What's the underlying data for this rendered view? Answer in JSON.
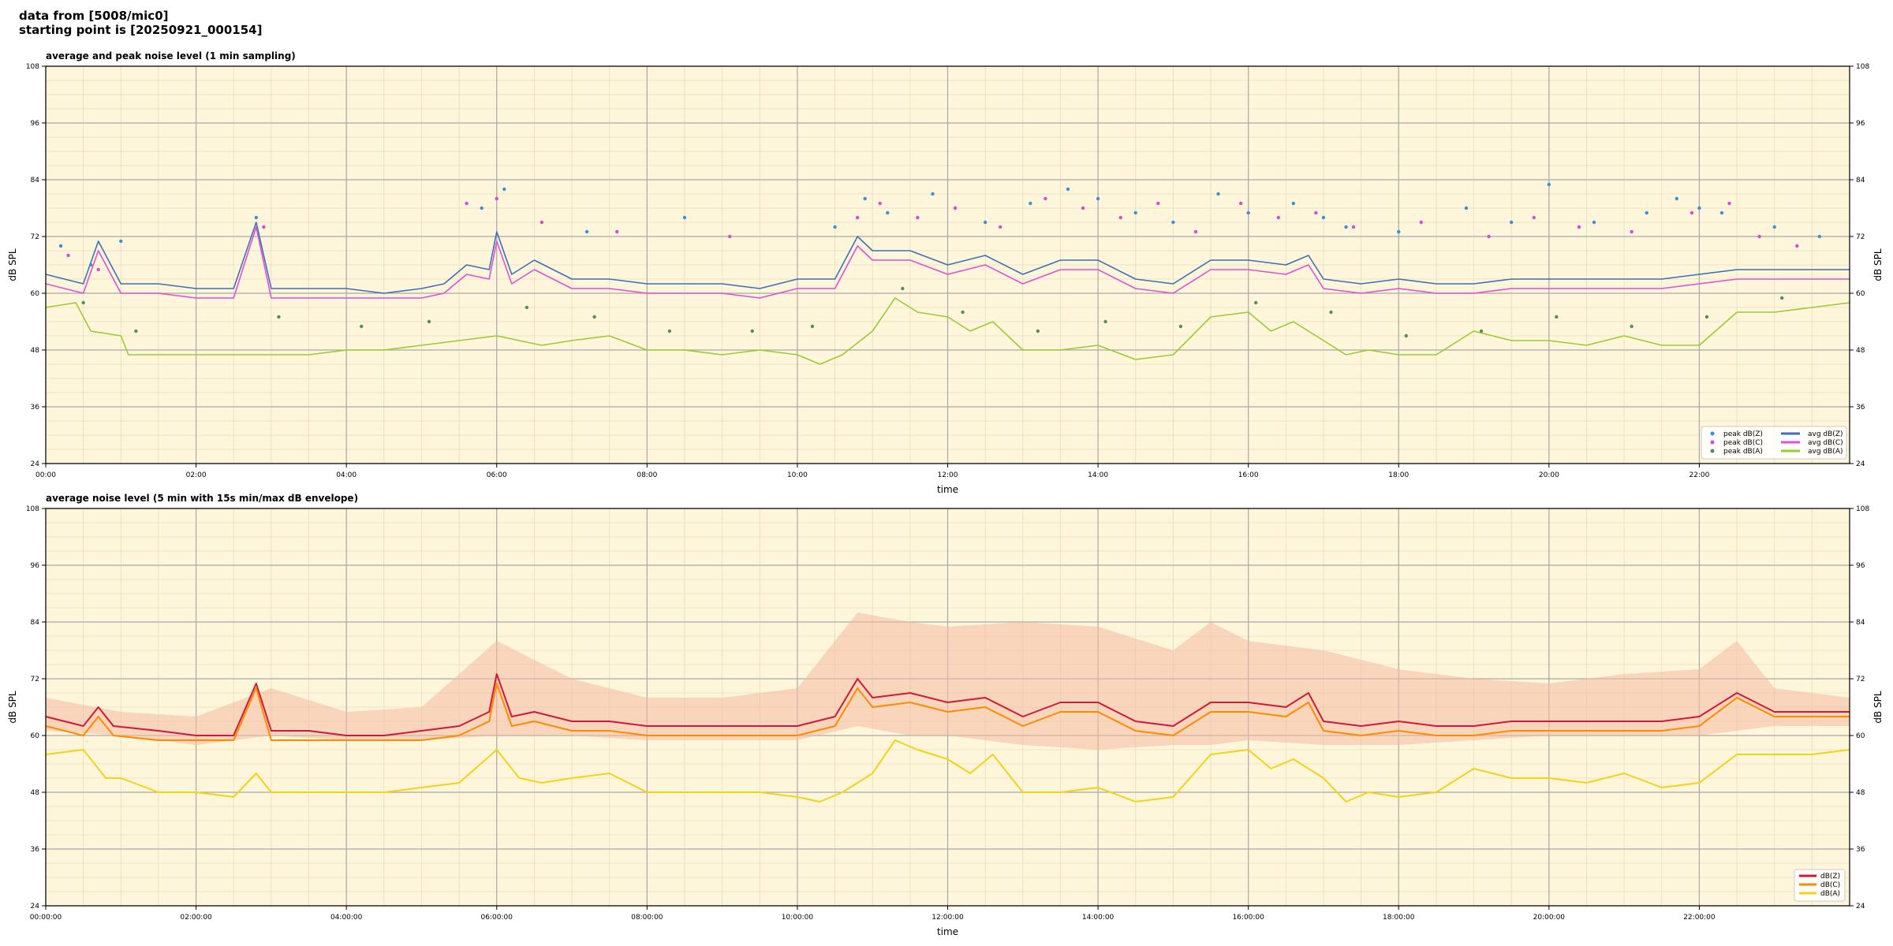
{
  "header": {
    "line1": "data from [5008/mic0]",
    "line2": "starting point is [20250921_000154]"
  },
  "chart_data": [
    {
      "type": "line",
      "title": "average and peak noise level (1 min sampling)",
      "xlabel": "time",
      "ylabel": "dB SPL",
      "xlim": [
        0,
        24
      ],
      "ylim": [
        24,
        108
      ],
      "yticks": [
        24,
        36,
        48,
        60,
        72,
        84,
        96,
        108
      ],
      "xticks": [
        0,
        2,
        4,
        6,
        8,
        10,
        12,
        14,
        16,
        18,
        20,
        22
      ],
      "xtick_labels": [
        "00:00",
        "02:00",
        "04:00",
        "06:00",
        "08:00",
        "10:00",
        "12:00",
        "14:00",
        "16:00",
        "18:00",
        "20:00",
        "22:00"
      ],
      "grid": true,
      "legend_position": "bottom-right",
      "colors": {
        "background": "#fdf6da",
        "avg_z": "#3f6fb5",
        "avg_c": "#e04fd4",
        "avg_a": "#99cc33"
      },
      "series": [
        {
          "name": "avg dB(Z)",
          "kind": "line",
          "color": "#3f6fb5",
          "x": [
            0,
            0.5,
            0.7,
            1,
            1.5,
            2,
            2.5,
            2.8,
            3,
            3.5,
            4,
            4.5,
            5,
            5.3,
            5.6,
            5.9,
            6,
            6.2,
            6.5,
            7,
            7.5,
            8,
            8.5,
            9,
            9.5,
            10,
            10.5,
            10.8,
            11,
            11.5,
            12,
            12.5,
            13,
            13.5,
            14,
            14.5,
            15,
            15.5,
            16,
            16.5,
            16.8,
            17,
            17.5,
            18,
            18.5,
            19,
            19.5,
            20,
            20.5,
            21,
            21.5,
            22,
            22.5,
            23,
            23.5,
            24
          ],
          "values": [
            64,
            62,
            71,
            62,
            62,
            61,
            61,
            75,
            61,
            61,
            61,
            60,
            61,
            62,
            66,
            65,
            73,
            64,
            67,
            63,
            63,
            62,
            62,
            62,
            61,
            63,
            63,
            72,
            69,
            69,
            66,
            68,
            64,
            67,
            67,
            63,
            62,
            67,
            67,
            66,
            68,
            63,
            62,
            63,
            62,
            62,
            63,
            63,
            63,
            63,
            63,
            64,
            65,
            65,
            65,
            65
          ]
        },
        {
          "name": "avg dB(C)",
          "kind": "line",
          "color": "#e04fd4",
          "x": [
            0,
            0.5,
            0.7,
            1,
            1.5,
            2,
            2.5,
            2.8,
            3,
            3.5,
            4,
            4.5,
            5,
            5.3,
            5.6,
            5.9,
            6,
            6.2,
            6.5,
            7,
            7.5,
            8,
            8.5,
            9,
            9.5,
            10,
            10.5,
            10.8,
            11,
            11.5,
            12,
            12.5,
            13,
            13.5,
            14,
            14.5,
            15,
            15.5,
            16,
            16.5,
            16.8,
            17,
            17.5,
            18,
            18.5,
            19,
            19.5,
            20,
            20.5,
            21,
            21.5,
            22,
            22.5,
            23,
            23.5,
            24
          ],
          "values": [
            62,
            60,
            69,
            60,
            60,
            59,
            59,
            74,
            59,
            59,
            59,
            59,
            59,
            60,
            64,
            63,
            71,
            62,
            65,
            61,
            61,
            60,
            60,
            60,
            59,
            61,
            61,
            70,
            67,
            67,
            64,
            66,
            62,
            65,
            65,
            61,
            60,
            65,
            65,
            64,
            66,
            61,
            60,
            61,
            60,
            60,
            61,
            61,
            61,
            61,
            61,
            62,
            63,
            63,
            63,
            63
          ]
        },
        {
          "name": "avg dB(A)",
          "kind": "line",
          "color": "#99cc33",
          "x": [
            0,
            0.4,
            0.6,
            1,
            1.1,
            1.5,
            2,
            2.5,
            3,
            3.5,
            4,
            4.5,
            5,
            5.5,
            6,
            6.3,
            6.6,
            7,
            7.5,
            8,
            8.5,
            9,
            9.5,
            10,
            10.3,
            10.6,
            11,
            11.3,
            11.6,
            12,
            12.3,
            12.6,
            13,
            13.5,
            14,
            14.5,
            15,
            15.5,
            16,
            16.3,
            16.6,
            17,
            17.3,
            17.6,
            18,
            18.5,
            19,
            19.5,
            20,
            20.5,
            21,
            21.5,
            22,
            22.5,
            23,
            23.5,
            24
          ],
          "values": [
            57,
            58,
            52,
            51,
            47,
            47,
            47,
            47,
            47,
            47,
            48,
            48,
            49,
            50,
            51,
            50,
            49,
            50,
            51,
            48,
            48,
            47,
            48,
            47,
            45,
            47,
            52,
            59,
            56,
            55,
            52,
            54,
            48,
            48,
            49,
            46,
            47,
            55,
            56,
            52,
            54,
            50,
            47,
            48,
            47,
            47,
            52,
            50,
            50,
            49,
            51,
            49,
            49,
            56,
            56,
            57,
            58
          ]
        },
        {
          "name": "peak dB(Z)",
          "kind": "points",
          "color": "#3a8fd8",
          "x": [
            0.2,
            0.6,
            1,
            2.8,
            5.8,
            6.1,
            7.2,
            8.5,
            10.5,
            10.9,
            11.2,
            11.8,
            12.5,
            13.1,
            13.6,
            14,
            14.5,
            15,
            15.6,
            16,
            16.6,
            17,
            17.3,
            18,
            18.9,
            19.5,
            20,
            20.6,
            21.3,
            21.7,
            22,
            22.3,
            23,
            23.6
          ],
          "values": [
            70,
            66,
            71,
            76,
            78,
            82,
            73,
            76,
            74,
            80,
            77,
            81,
            75,
            79,
            82,
            80,
            77,
            75,
            81,
            77,
            79,
            76,
            74,
            73,
            78,
            75,
            83,
            75,
            77,
            80,
            78,
            77,
            74,
            72
          ]
        },
        {
          "name": "peak dB(C)",
          "kind": "points",
          "color": "#d84ad0",
          "x": [
            0.3,
            0.7,
            2.9,
            5.6,
            6.0,
            6.6,
            7.6,
            9.1,
            10.8,
            11.1,
            11.6,
            12.1,
            12.7,
            13.3,
            13.8,
            14.3,
            14.8,
            15.3,
            15.9,
            16.4,
            16.9,
            17.4,
            18.3,
            19.2,
            19.8,
            20.4,
            21.1,
            21.9,
            22.4,
            22.8,
            23.3
          ],
          "values": [
            68,
            65,
            74,
            79,
            80,
            75,
            73,
            72,
            76,
            79,
            76,
            78,
            74,
            80,
            78,
            76,
            79,
            73,
            79,
            76,
            77,
            74,
            75,
            72,
            76,
            74,
            73,
            77,
            79,
            72,
            70
          ]
        },
        {
          "name": "peak dB(A)",
          "kind": "points",
          "color": "#4f8f5f",
          "x": [
            0.5,
            1.2,
            3.1,
            4.2,
            5.1,
            6.4,
            7.3,
            8.3,
            9.4,
            10.2,
            11.4,
            12.2,
            13.2,
            14.1,
            15.1,
            16.1,
            17.1,
            18.1,
            19.1,
            20.1,
            21.1,
            22.1,
            23.1
          ],
          "values": [
            58,
            52,
            55,
            53,
            54,
            57,
            55,
            52,
            52,
            53,
            61,
            56,
            52,
            54,
            53,
            58,
            56,
            51,
            52,
            55,
            53,
            55,
            59
          ]
        }
      ]
    },
    {
      "type": "line",
      "title": "average noise level (5 min with 15s min/max dB envelope)",
      "xlabel": "time",
      "ylabel": "dB SPL",
      "xlim": [
        0,
        24
      ],
      "ylim": [
        24,
        108
      ],
      "yticks": [
        24,
        36,
        48,
        60,
        72,
        84,
        96,
        108
      ],
      "xticks": [
        0,
        2,
        4,
        6,
        8,
        10,
        12,
        14,
        16,
        18,
        20,
        22
      ],
      "xtick_labels": [
        "00:00:00",
        "02:00:00",
        "04:00:00",
        "06:00:00",
        "08:00:00",
        "10:00:00",
        "12:00:00",
        "14:00:00",
        "16:00:00",
        "18:00:00",
        "20:00:00",
        "22:00:00"
      ],
      "grid": true,
      "legend_position": "bottom-right",
      "colors": {
        "background": "#fdf6da",
        "envelope": "#f4b9a3",
        "z": "#d0183a",
        "c": "#ff8a00",
        "a": "#f2d318"
      },
      "envelope": {
        "x": [
          0,
          1,
          2,
          3,
          4,
          5,
          6,
          7,
          8,
          9,
          10,
          10.8,
          11.5,
          12,
          13,
          14,
          15,
          15.5,
          16,
          17,
          18,
          19,
          20,
          21,
          22,
          22.5,
          23,
          24
        ],
        "max": [
          68,
          65,
          64,
          70,
          65,
          66,
          80,
          72,
          68,
          68,
          70,
          86,
          84,
          83,
          84,
          83,
          78,
          84,
          80,
          78,
          74,
          72,
          71,
          73,
          74,
          80,
          70,
          68
        ],
        "min": [
          61,
          60,
          58,
          60,
          59,
          59,
          60,
          60,
          59,
          59,
          59,
          62,
          60,
          60,
          58,
          57,
          58,
          58,
          59,
          58,
          58,
          59,
          60,
          60,
          60,
          61,
          62,
          62
        ]
      },
      "series": [
        {
          "name": "dB(Z)",
          "color": "#d0183a",
          "x": [
            0,
            0.5,
            0.7,
            0.9,
            1.5,
            2,
            2.5,
            2.8,
            3,
            3.5,
            4,
            4.5,
            5,
            5.5,
            5.9,
            6,
            6.2,
            6.5,
            7,
            7.5,
            8,
            8.5,
            9,
            9.5,
            10,
            10.5,
            10.8,
            11,
            11.5,
            12,
            12.5,
            13,
            13.5,
            14,
            14.5,
            15,
            15.5,
            16,
            16.5,
            16.8,
            17,
            17.5,
            18,
            18.5,
            19,
            19.5,
            20,
            20.5,
            21,
            21.5,
            22,
            22.5,
            23,
            23.5,
            24
          ],
          "values": [
            64,
            62,
            66,
            62,
            61,
            60,
            60,
            71,
            61,
            61,
            60,
            60,
            61,
            62,
            65,
            73,
            64,
            65,
            63,
            63,
            62,
            62,
            62,
            62,
            62,
            64,
            72,
            68,
            69,
            67,
            68,
            64,
            67,
            67,
            63,
            62,
            67,
            67,
            66,
            69,
            63,
            62,
            63,
            62,
            62,
            63,
            63,
            63,
            63,
            63,
            64,
            69,
            65,
            65,
            65
          ]
        },
        {
          "name": "dB(C)",
          "color": "#ff8a00",
          "x": [
            0,
            0.5,
            0.7,
            0.9,
            1.5,
            2,
            2.5,
            2.8,
            3,
            3.5,
            4,
            4.5,
            5,
            5.5,
            5.9,
            6,
            6.2,
            6.5,
            7,
            7.5,
            8,
            8.5,
            9,
            9.5,
            10,
            10.5,
            10.8,
            11,
            11.5,
            12,
            12.5,
            13,
            13.5,
            14,
            14.5,
            15,
            15.5,
            16,
            16.5,
            16.8,
            17,
            17.5,
            18,
            18.5,
            19,
            19.5,
            20,
            20.5,
            21,
            21.5,
            22,
            22.5,
            23,
            23.5,
            24
          ],
          "values": [
            62,
            60,
            64,
            60,
            59,
            59,
            59,
            70,
            59,
            59,
            59,
            59,
            59,
            60,
            63,
            71,
            62,
            63,
            61,
            61,
            60,
            60,
            60,
            60,
            60,
            62,
            70,
            66,
            67,
            65,
            66,
            62,
            65,
            65,
            61,
            60,
            65,
            65,
            64,
            67,
            61,
            60,
            61,
            60,
            60,
            61,
            61,
            61,
            61,
            61,
            62,
            68,
            64,
            64,
            64
          ]
        },
        {
          "name": "dB(A)",
          "color": "#f2d318",
          "x": [
            0,
            0.5,
            0.8,
            1,
            1.5,
            2,
            2.5,
            2.8,
            3,
            3.5,
            4,
            4.5,
            5,
            5.5,
            6,
            6.3,
            6.6,
            7,
            7.5,
            8,
            8.5,
            9,
            9.5,
            10,
            10.3,
            10.6,
            11,
            11.3,
            11.6,
            12,
            12.3,
            12.6,
            13,
            13.5,
            14,
            14.5,
            15,
            15.5,
            16,
            16.3,
            16.6,
            17,
            17.3,
            17.6,
            18,
            18.5,
            19,
            19.5,
            20,
            20.5,
            21,
            21.5,
            22,
            22.5,
            23,
            23.5,
            24
          ],
          "values": [
            56,
            57,
            51,
            51,
            48,
            48,
            47,
            52,
            48,
            48,
            48,
            48,
            49,
            50,
            57,
            51,
            50,
            51,
            52,
            48,
            48,
            48,
            48,
            47,
            46,
            48,
            52,
            59,
            57,
            55,
            52,
            56,
            48,
            48,
            49,
            46,
            47,
            56,
            57,
            53,
            55,
            51,
            46,
            48,
            47,
            48,
            53,
            51,
            51,
            50,
            52,
            49,
            50,
            56,
            56,
            56,
            57
          ]
        }
      ]
    }
  ]
}
